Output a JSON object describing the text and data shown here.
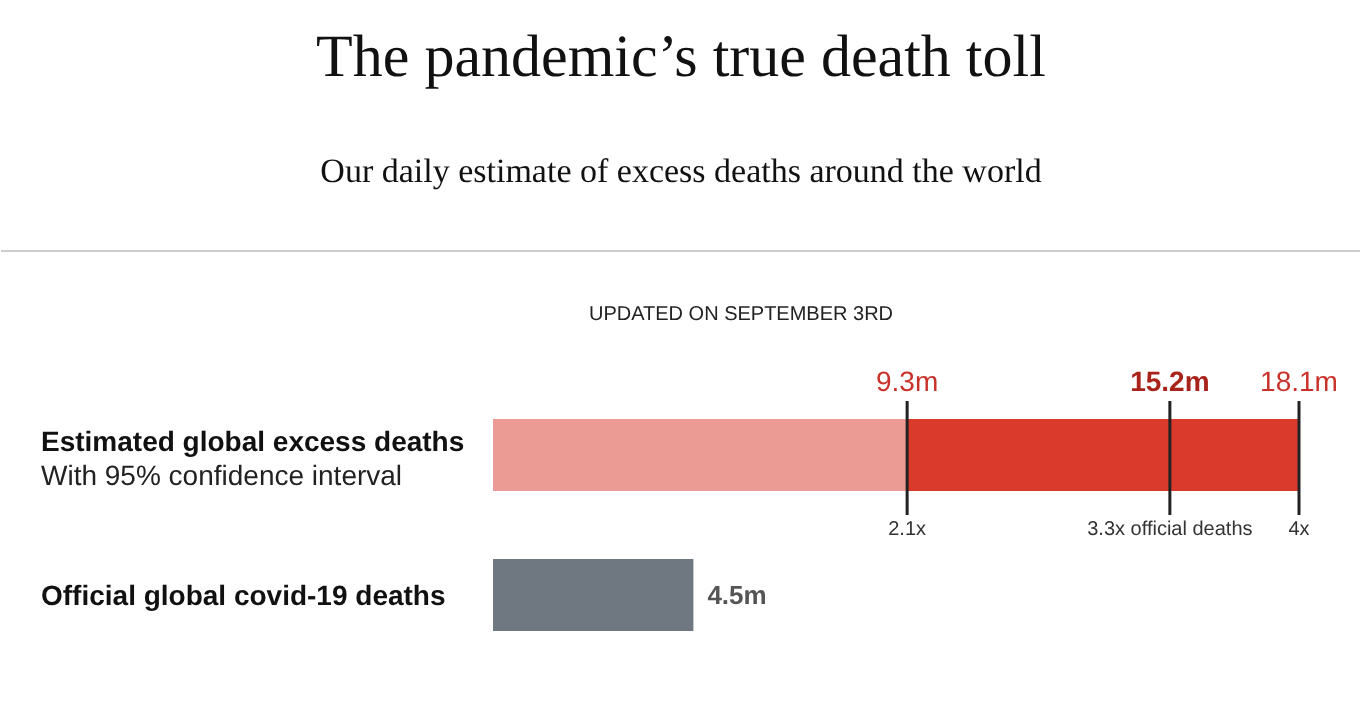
{
  "chart_data": {
    "type": "bar",
    "orientation": "horizontal",
    "stacked": true,
    "title": "The pandemic’s true death toll",
    "subtitle": "Our daily estimate of excess deaths around the world",
    "categories": [
      "Estimated global excess deaths",
      "Official global covid-19 deaths"
    ],
    "series": [
      {
        "color": "#ec9a94",
        "values": [
          9.3,
          null
        ]
      },
      {
        "color": "#d93a2b",
        "values": [
          8.8,
          null
        ]
      },
      {
        "color": "#6f7780",
        "values": [
          null,
          4.5
        ],
        "value_labels": [
          null,
          "4.5m"
        ]
      }
    ],
    "ref_lines": [
      {
        "axis": "x",
        "value": 9.3,
        "label": "9.3m"
      },
      {
        "axis": "x",
        "value": 15.2,
        "label": "15.2m"
      },
      {
        "axis": "x",
        "value": 18.1,
        "label": "18.1m"
      }
    ],
    "annotations": [
      "UPDATED ON SEPTEMBER 3RD",
      "With 95% confidence interval",
      {
        "text": "2.1x",
        "x": 9.3,
        "y": "Estimated global excess deaths"
      },
      {
        "text": "3.3x official deaths",
        "x": 15.2,
        "y": "Estimated global excess deaths"
      },
      {
        "text": "4x",
        "x": 18.1,
        "y": "Estimated global excess deaths"
      }
    ],
    "grid": false
  }
}
